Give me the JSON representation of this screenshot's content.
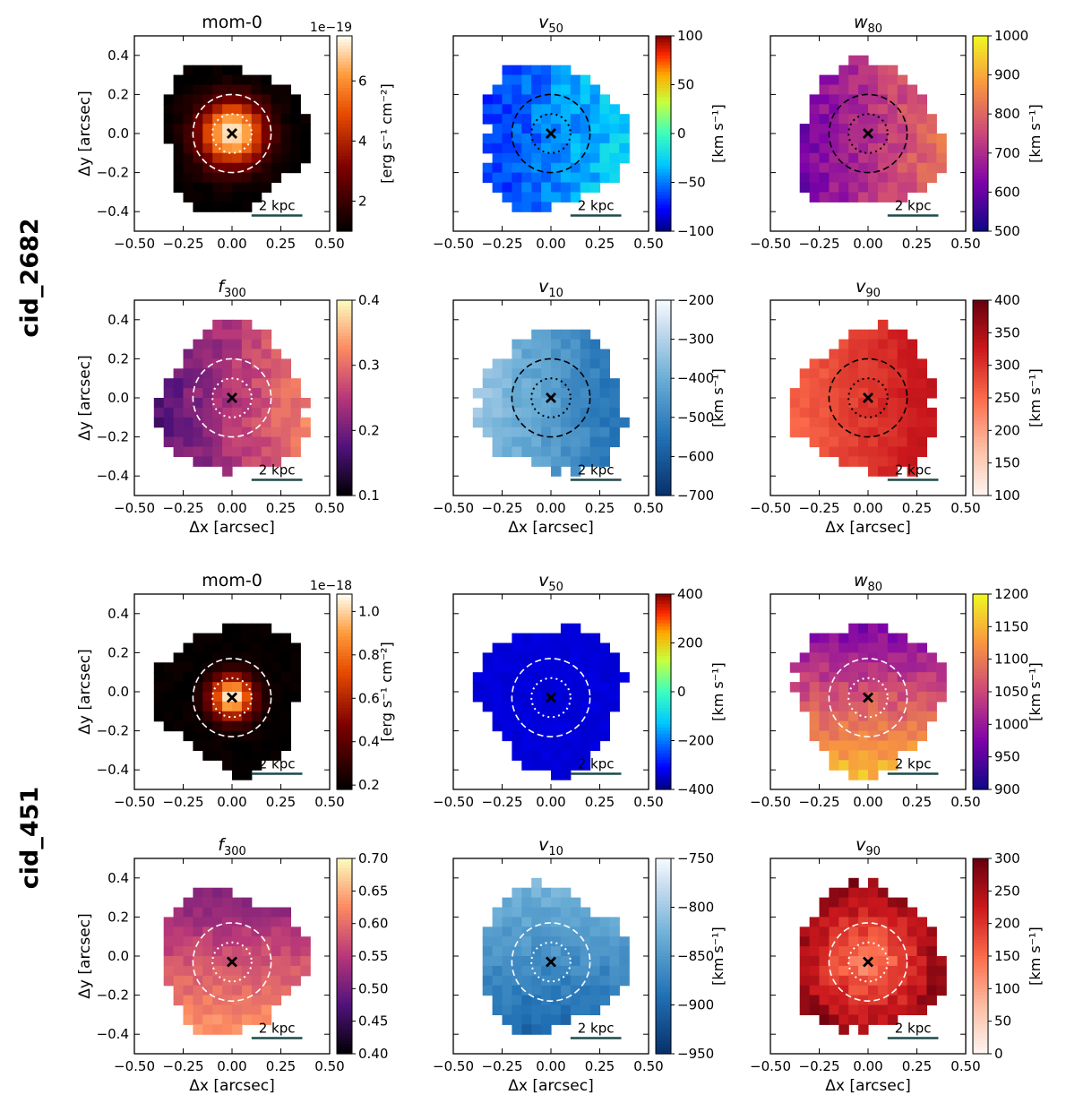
{
  "figure": {
    "row_labels": [
      "cid_2682",
      "cid_451"
    ],
    "scale_bar_label": "2 kpc",
    "xlabel": "Δx [arcsec]",
    "ylabel": "Δy [arcsec]",
    "xlim": [
      -0.5,
      0.5
    ],
    "ylim": [
      -0.5,
      0.5
    ],
    "x_ticks": [
      "−0.50",
      "−0.25",
      "0.00",
      "0.25",
      "0.50"
    ],
    "y_ticks": [
      "0.4",
      "0.2",
      "0.0",
      "−0.2",
      "−0.4"
    ]
  },
  "chart_data": [
    {
      "type": "heatmap",
      "object": "cid_2682",
      "title": "mom-0",
      "title_style": "plain",
      "cmap": "gist_heat",
      "clim": [
        1.0,
        7.5
      ],
      "ticks": [
        "2",
        "4",
        "6"
      ],
      "tick_values": [
        2,
        4,
        6
      ],
      "cbar_label": "[erg s⁻¹ cm⁻²]",
      "exponent": "1e−19",
      "center": [
        0.0,
        0.0
      ],
      "circle_style": "white",
      "pattern": "radial",
      "cmin": 1.0,
      "cmax": 7.4,
      "noise": 0.2
    },
    {
      "type": "heatmap",
      "object": "cid_2682",
      "title": "v",
      "subscript": "50",
      "title_style": "italic",
      "cmap": "jet",
      "clim": [
        -100,
        100
      ],
      "ticks": [
        "100",
        "50",
        "0",
        "−50",
        "−100"
      ],
      "tick_values": [
        100,
        50,
        0,
        -50,
        -100
      ],
      "cbar_label": "[km s⁻¹]",
      "exponent": "",
      "center": [
        0.0,
        0.0
      ],
      "circle_style": "black",
      "pattern": "eastwest",
      "cmin": -70,
      "cmax": -25,
      "noise": 12
    },
    {
      "type": "heatmap",
      "object": "cid_2682",
      "title": "w",
      "subscript": "80",
      "title_style": "italic",
      "cmap": "plasma",
      "clim": [
        500,
        1000
      ],
      "ticks": [
        "1000",
        "900",
        "800",
        "700",
        "600",
        "500"
      ],
      "tick_values": [
        1000,
        900,
        800,
        700,
        600,
        500
      ],
      "cbar_label": "[km s⁻¹]",
      "exponent": "",
      "center": [
        0.0,
        0.0
      ],
      "circle_style": "black",
      "pattern": "eastwest",
      "cmin": 600,
      "cmax": 820,
      "noise": 40
    },
    {
      "type": "heatmap",
      "object": "cid_2682",
      "title": "f",
      "subscript": "300",
      "title_style": "italic",
      "cmap": "magma",
      "clim": [
        0.1,
        0.4
      ],
      "ticks": [
        "0.4",
        "0.3",
        "0.2",
        "0.1"
      ],
      "tick_values": [
        0.4,
        0.3,
        0.2,
        0.1
      ],
      "cbar_label": "",
      "exponent": "",
      "center": [
        0.0,
        0.0
      ],
      "circle_style": "white",
      "pattern": "eastwest",
      "cmin": 0.17,
      "cmax": 0.32,
      "noise": 0.02
    },
    {
      "type": "heatmap",
      "object": "cid_2682",
      "title": "v",
      "subscript": "10",
      "title_style": "italic",
      "cmap": "Blues_r",
      "clim": [
        -700,
        -200
      ],
      "ticks": [
        "−200",
        "−300",
        "−400",
        "−500",
        "−600",
        "−700"
      ],
      "tick_values": [
        -200,
        -300,
        -400,
        -500,
        -600,
        -700
      ],
      "cbar_label": "[km s⁻¹]",
      "exponent": "",
      "center": [
        0.0,
        0.0
      ],
      "circle_style": "black",
      "pattern": "westeast",
      "cmin": -560,
      "cmax": -330,
      "noise": 30
    },
    {
      "type": "heatmap",
      "object": "cid_2682",
      "title": "v",
      "subscript": "90",
      "title_style": "italic",
      "cmap": "Reds",
      "clim": [
        100,
        400
      ],
      "ticks": [
        "400",
        "350",
        "300",
        "250",
        "200",
        "150",
        "100"
      ],
      "tick_values": [
        400,
        350,
        300,
        250,
        200,
        150,
        100
      ],
      "cbar_label": "[km s⁻¹]",
      "exponent": "",
      "center": [
        0.0,
        0.0
      ],
      "circle_style": "black",
      "pattern": "eastwest",
      "cmin": 255,
      "cmax": 340,
      "noise": 12
    },
    {
      "type": "heatmap",
      "object": "cid_451",
      "title": "mom-0",
      "title_style": "plain",
      "cmap": "gist_heat",
      "clim": [
        0.18,
        1.08
      ],
      "ticks": [
        "1.0",
        "0.8",
        "0.6",
        "0.4",
        "0.2"
      ],
      "tick_values": [
        1.0,
        0.8,
        0.6,
        0.4,
        0.2
      ],
      "cbar_label": "[erg s⁻¹ cm⁻²]",
      "exponent": "1e−18",
      "center": [
        0.0,
        -0.03
      ],
      "circle_style": "white",
      "pattern": "radial_steep",
      "cmin": 0.19,
      "cmax": 1.06,
      "noise": 0.02
    },
    {
      "type": "heatmap",
      "object": "cid_451",
      "title": "v",
      "subscript": "50",
      "title_style": "italic",
      "cmap": "jet",
      "clim": [
        -400,
        400
      ],
      "ticks": [
        "400",
        "200",
        "0",
        "−200",
        "−400"
      ],
      "tick_values": [
        400,
        200,
        0,
        -200,
        -400
      ],
      "cbar_label": "[km s⁻¹]",
      "exponent": "",
      "center": [
        0.0,
        -0.03
      ],
      "circle_style": "white",
      "pattern": "flat",
      "cmin": -345,
      "cmax": -330,
      "noise": 8
    },
    {
      "type": "heatmap",
      "object": "cid_451",
      "title": "w",
      "subscript": "80",
      "title_style": "italic",
      "cmap": "plasma",
      "clim": [
        900,
        1200
      ],
      "ticks": [
        "1200",
        "1150",
        "1100",
        "1050",
        "1000",
        "950",
        "900"
      ],
      "tick_values": [
        1200,
        1150,
        1100,
        1050,
        1000,
        950,
        900
      ],
      "cbar_label": "[km s⁻¹]",
      "exponent": "",
      "center": [
        0.0,
        -0.03
      ],
      "circle_style": "white",
      "pattern": "northsouth",
      "cmin": 960,
      "cmax": 1150,
      "noise": 20
    },
    {
      "type": "heatmap",
      "object": "cid_451",
      "title": "f",
      "subscript": "300",
      "title_style": "italic",
      "cmap": "magma",
      "clim": [
        0.4,
        0.7
      ],
      "ticks": [
        "0.70",
        "0.65",
        "0.60",
        "0.55",
        "0.50",
        "0.45",
        "0.40"
      ],
      "tick_values": [
        0.7,
        0.65,
        0.6,
        0.55,
        0.5,
        0.45,
        0.4
      ],
      "cbar_label": "",
      "exponent": "",
      "center": [
        0.0,
        -0.03
      ],
      "circle_style": "white",
      "pattern": "northsouth",
      "cmin": 0.5,
      "cmax": 0.64,
      "noise": 0.015
    },
    {
      "type": "heatmap",
      "object": "cid_451",
      "title": "v",
      "subscript": "10",
      "title_style": "italic",
      "cmap": "Blues_r",
      "clim": [
        -950,
        -750
      ],
      "ticks": [
        "−750",
        "−800",
        "−850",
        "−900",
        "−950"
      ],
      "tick_values": [
        -750,
        -800,
        -850,
        -900,
        -950
      ],
      "cbar_label": "[km s⁻¹]",
      "exponent": "",
      "center": [
        0.0,
        -0.03
      ],
      "circle_style": "white",
      "pattern": "southnorth",
      "cmin": -900,
      "cmax": -820,
      "noise": 12
    },
    {
      "type": "heatmap",
      "object": "cid_451",
      "title": "v",
      "subscript": "90",
      "title_style": "italic",
      "cmap": "Reds",
      "clim": [
        0,
        300
      ],
      "ticks": [
        "300",
        "250",
        "200",
        "150",
        "100",
        "50",
        "0"
      ],
      "tick_values": [
        300,
        250,
        200,
        150,
        100,
        50,
        0
      ],
      "cbar_label": "[km s⁻¹]",
      "exponent": "",
      "center": [
        0.0,
        -0.03
      ],
      "circle_style": "white",
      "pattern": "edge",
      "cmin": 120,
      "cmax": 270,
      "noise": 25
    }
  ]
}
